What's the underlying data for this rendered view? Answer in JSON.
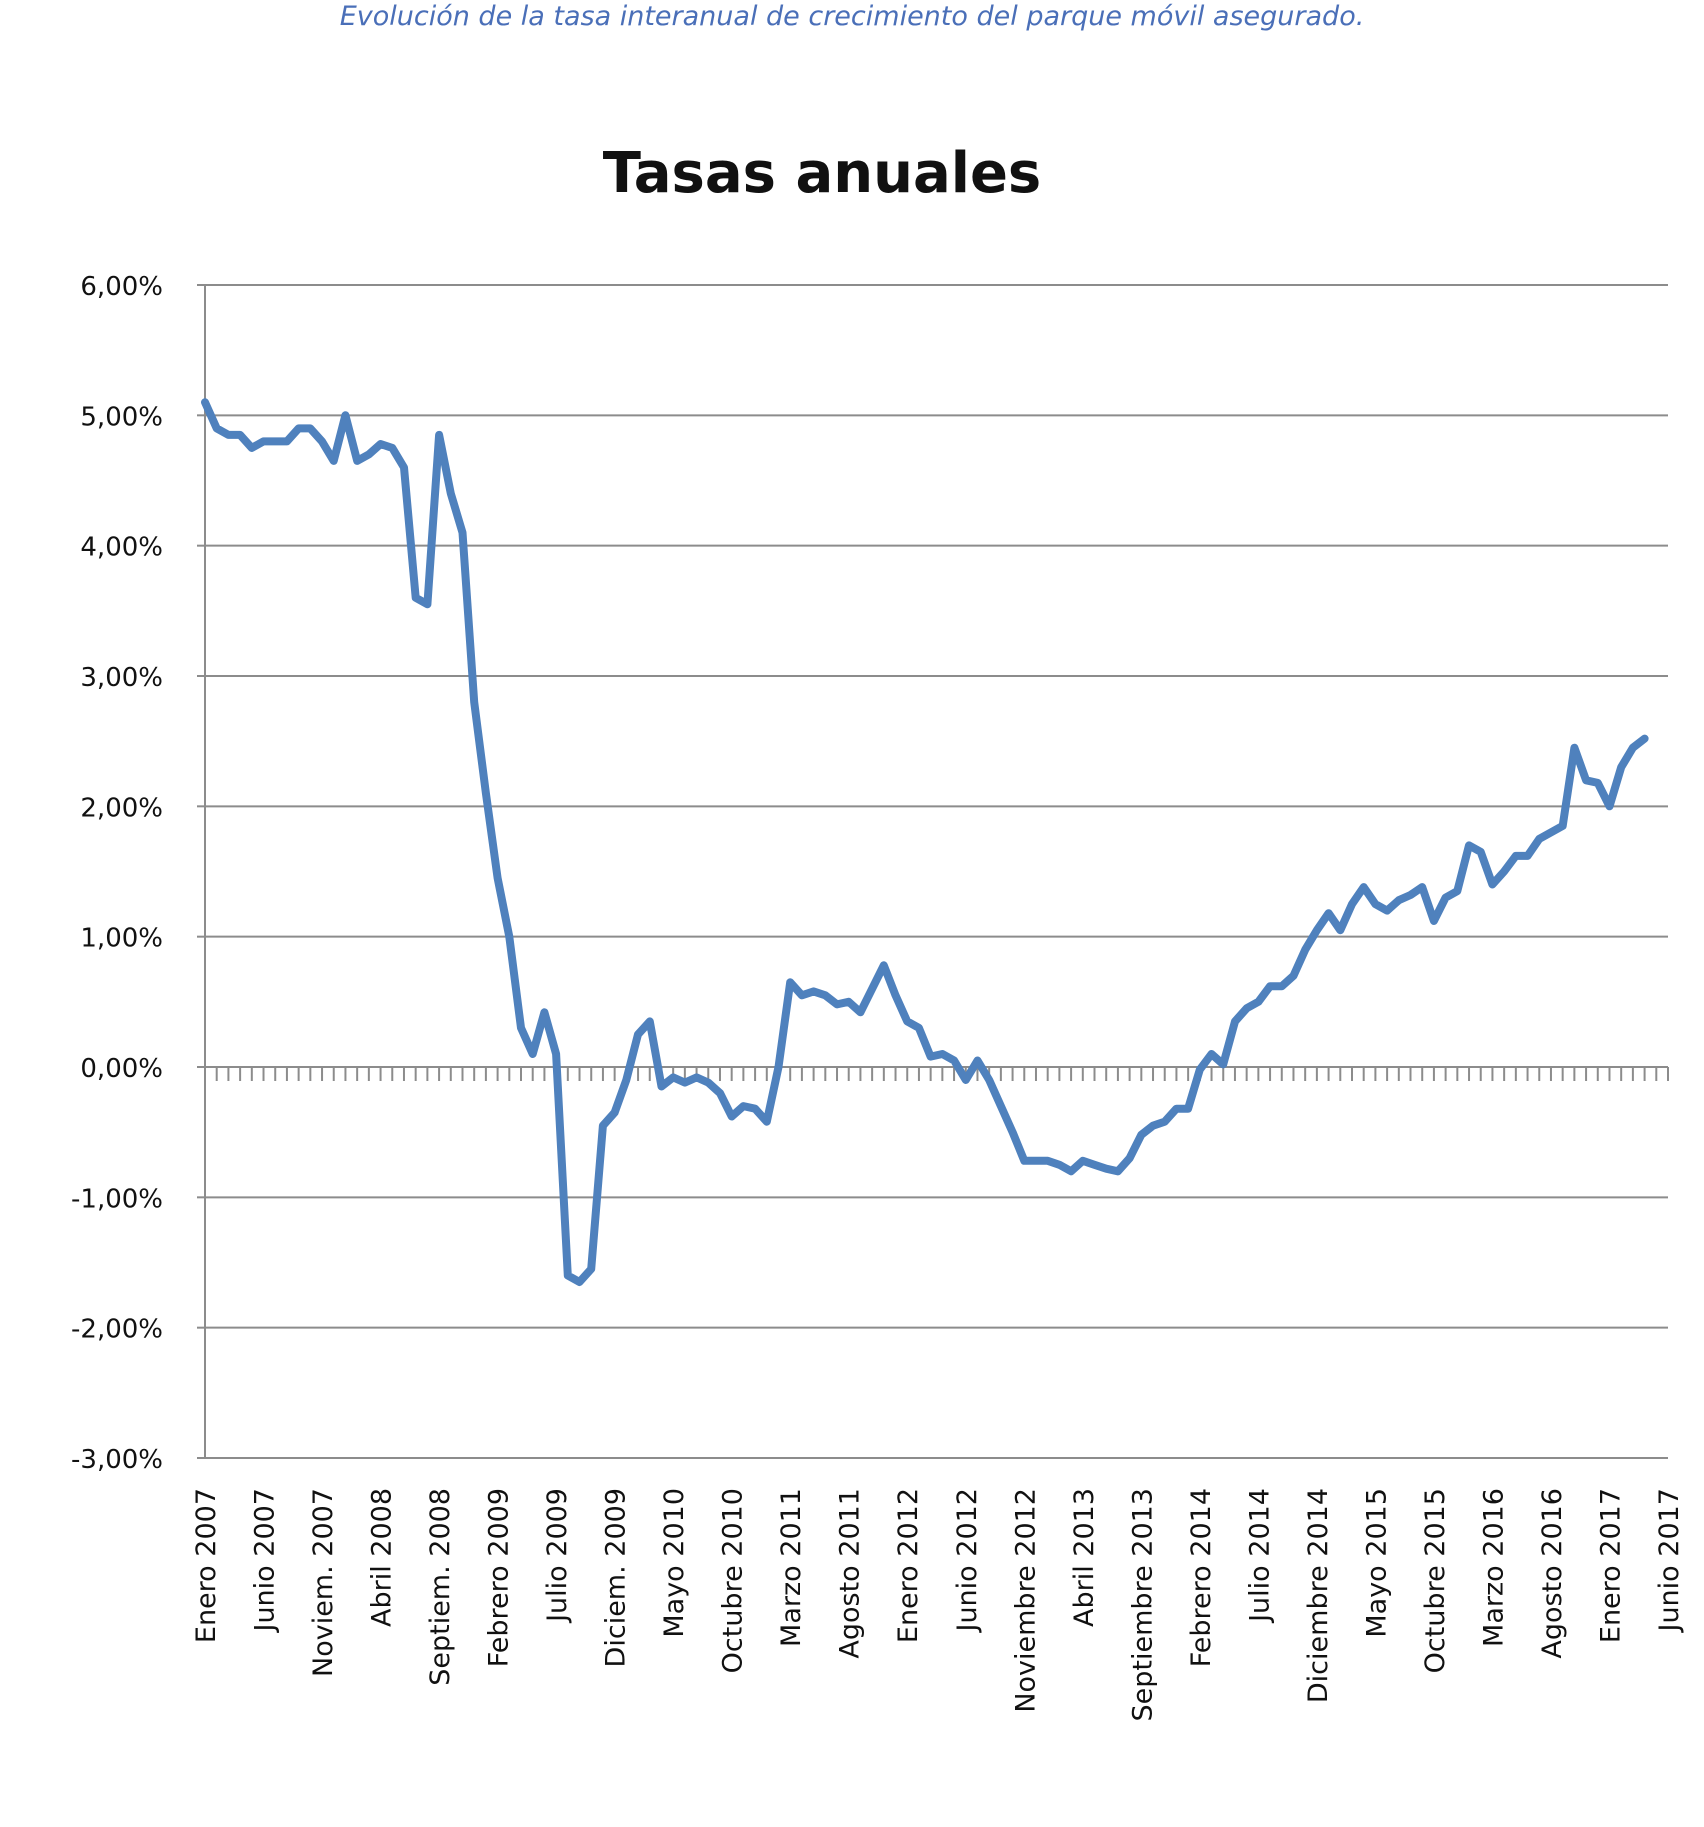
{
  "caption": "Evolución de la tasa interanual de crecimiento del parque móvil asegurado.",
  "chart_data": {
    "type": "line",
    "title": "Tasas anuales",
    "ylim": [
      -3.0,
      6.0
    ],
    "y_ticks": [
      "6,00%",
      "5,00%",
      "4,00%",
      "3,00%",
      "2,00%",
      "1,00%",
      "0,00%",
      "-1,00%",
      "-2,00%",
      "-3,00%"
    ],
    "y_tick_values": [
      6,
      5,
      4,
      3,
      2,
      1,
      0,
      -1,
      -2,
      -3
    ],
    "x_range": [
      "2007-01",
      "2017-06"
    ],
    "grid": "horizontal",
    "line_color": "#4f81bd",
    "x_tick_labels": [
      {
        "date": "2007-01",
        "label": "Enero 2007"
      },
      {
        "date": "2007-06",
        "label": "Junio 2007"
      },
      {
        "date": "2007-11",
        "label": "Noviem. 2007"
      },
      {
        "date": "2008-04",
        "label": "Abril 2008"
      },
      {
        "date": "2008-09",
        "label": "Septiem. 2008"
      },
      {
        "date": "2009-02",
        "label": "Febrero 2009"
      },
      {
        "date": "2009-07",
        "label": "Julio 2009"
      },
      {
        "date": "2009-12",
        "label": "Diciem. 2009"
      },
      {
        "date": "2010-05",
        "label": "Mayo 2010"
      },
      {
        "date": "2010-10",
        "label": "Octubre 2010"
      },
      {
        "date": "2011-03",
        "label": "Marzo 2011"
      },
      {
        "date": "2011-08",
        "label": "Agosto 2011"
      },
      {
        "date": "2012-01",
        "label": "Enero 2012"
      },
      {
        "date": "2012-06",
        "label": "Junio 2012"
      },
      {
        "date": "2012-11",
        "label": "Noviembre 2012"
      },
      {
        "date": "2013-04",
        "label": "Abril 2013"
      },
      {
        "date": "2013-09",
        "label": "Septiembre 2013"
      },
      {
        "date": "2014-02",
        "label": "Febrero 2014"
      },
      {
        "date": "2014-07",
        "label": "Julio 2014"
      },
      {
        "date": "2014-12",
        "label": "Diciembre 2014"
      },
      {
        "date": "2015-05",
        "label": "Mayo 2015"
      },
      {
        "date": "2015-10",
        "label": "Octubre 2015"
      },
      {
        "date": "2016-03",
        "label": "Marzo 2016"
      },
      {
        "date": "2016-08",
        "label": "Agosto 2016"
      },
      {
        "date": "2017-01",
        "label": "Enero 2017"
      },
      {
        "date": "2017-06",
        "label": "Junio 2017"
      }
    ],
    "series": [
      {
        "values": [
          5.1,
          4.9,
          4.85,
          4.85,
          4.75,
          4.8,
          4.8,
          4.8,
          4.9,
          4.9,
          4.8,
          4.65,
          5.0,
          4.65,
          4.7,
          4.78,
          4.75,
          4.6,
          3.6,
          3.55,
          4.85,
          4.4,
          4.1,
          2.8,
          2.1,
          1.45,
          1.0,
          0.3,
          0.1,
          0.42,
          0.1,
          -1.6,
          -1.65,
          -1.55,
          -0.45,
          -0.35,
          -0.1,
          0.25,
          0.35,
          -0.15,
          -0.08,
          -0.12,
          -0.08,
          -0.12,
          -0.2,
          -0.38,
          -0.3,
          -0.32,
          -0.42,
          0.0,
          0.65,
          0.55,
          0.58,
          0.55,
          0.48,
          0.5,
          0.42,
          0.6,
          0.78,
          0.55,
          0.35,
          0.3,
          0.08,
          0.1,
          0.05,
          -0.1,
          0.05,
          -0.1,
          -0.3,
          -0.5,
          -0.72,
          -0.72,
          -0.72,
          -0.75,
          -0.8,
          -0.72,
          -0.75,
          -0.78,
          -0.8,
          -0.7,
          -0.52,
          -0.45,
          -0.42,
          -0.32,
          -0.32,
          -0.02,
          0.1,
          0.02,
          0.35,
          0.45,
          0.5,
          0.62,
          0.62,
          0.7,
          0.9,
          1.05,
          1.18,
          1.05,
          1.25,
          1.38,
          1.25,
          1.2,
          1.28,
          1.32,
          1.38,
          1.12,
          1.3,
          1.35,
          1.7,
          1.65,
          1.4,
          1.5,
          1.62,
          1.62,
          1.75,
          1.8,
          1.85,
          2.45,
          2.2,
          2.18,
          2.0,
          2.3,
          2.45,
          2.52
        ]
      }
    ]
  }
}
